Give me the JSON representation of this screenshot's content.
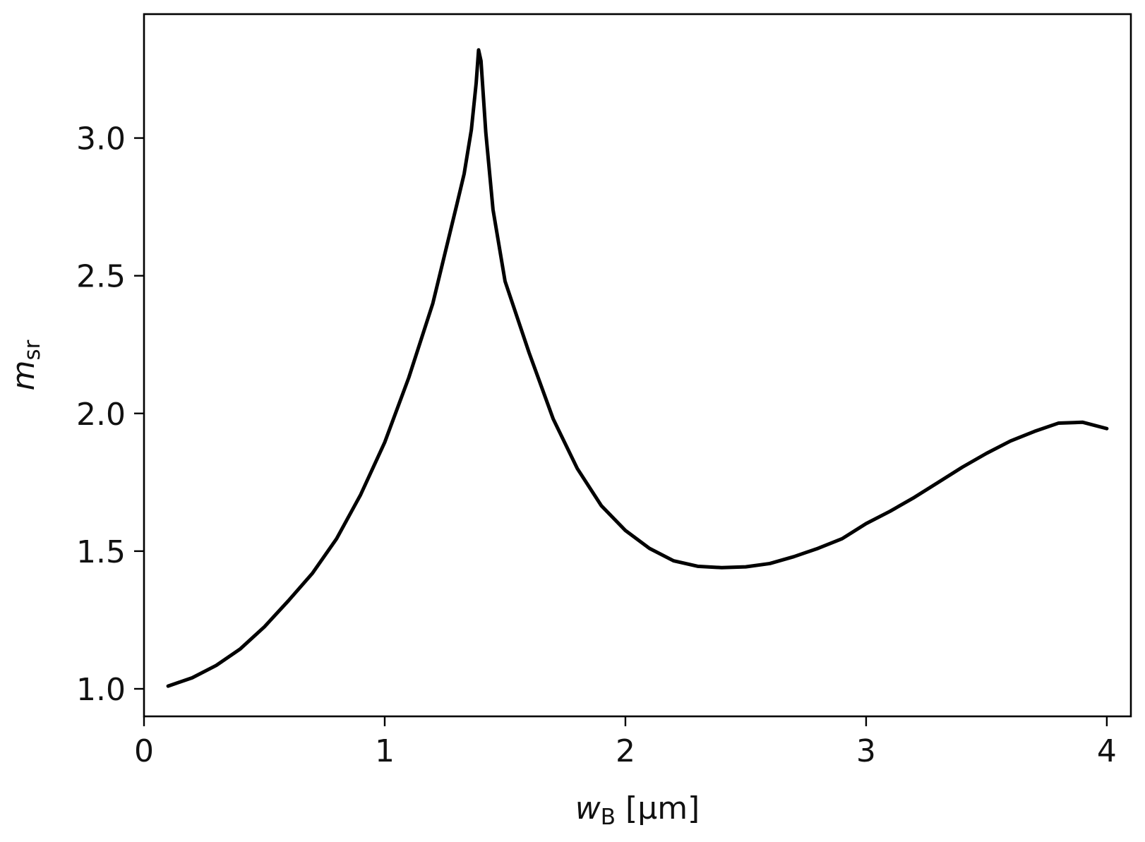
{
  "chart_data": {
    "type": "line",
    "title": "",
    "xlabel": {
      "symbol": "w",
      "subscript": "B",
      "unit": " [μm]"
    },
    "ylabel": {
      "symbol": "m",
      "subscript": "sr"
    },
    "xlim": [
      0,
      4.1
    ],
    "ylim": [
      0.9,
      3.45
    ],
    "xticks": [
      0,
      1,
      2,
      3,
      4
    ],
    "xtick_labels": [
      "0",
      "1",
      "2",
      "3",
      "4"
    ],
    "yticks": [
      1.0,
      1.5,
      2.0,
      2.5,
      3.0
    ],
    "ytick_labels": [
      "1.0",
      "1.5",
      "2.0",
      "2.5",
      "3.0"
    ],
    "grid": false,
    "legend": "none",
    "series": [
      {
        "color": "#000000",
        "x": [
          0.1,
          0.2,
          0.3,
          0.4,
          0.5,
          0.6,
          0.7,
          0.8,
          0.9,
          1.0,
          1.1,
          1.2,
          1.25,
          1.3,
          1.33,
          1.36,
          1.38,
          1.39,
          1.4,
          1.42,
          1.45,
          1.5,
          1.6,
          1.7,
          1.8,
          1.9,
          2.0,
          2.1,
          2.2,
          2.3,
          2.4,
          2.5,
          2.6,
          2.7,
          2.8,
          2.9,
          3.0,
          3.1,
          3.2,
          3.3,
          3.4,
          3.5,
          3.6,
          3.7,
          3.8,
          3.9,
          4.0
        ],
        "y": [
          1.01,
          1.04,
          1.085,
          1.145,
          1.225,
          1.32,
          1.42,
          1.545,
          1.705,
          1.895,
          2.13,
          2.4,
          2.58,
          2.76,
          2.87,
          3.03,
          3.2,
          3.32,
          3.28,
          3.02,
          2.74,
          2.48,
          2.22,
          1.98,
          1.8,
          1.665,
          1.575,
          1.51,
          1.465,
          1.445,
          1.44,
          1.443,
          1.455,
          1.48,
          1.51,
          1.545,
          1.6,
          1.645,
          1.695,
          1.75,
          1.805,
          1.855,
          1.9,
          1.935,
          1.965,
          1.968,
          1.945
        ]
      }
    ]
  }
}
